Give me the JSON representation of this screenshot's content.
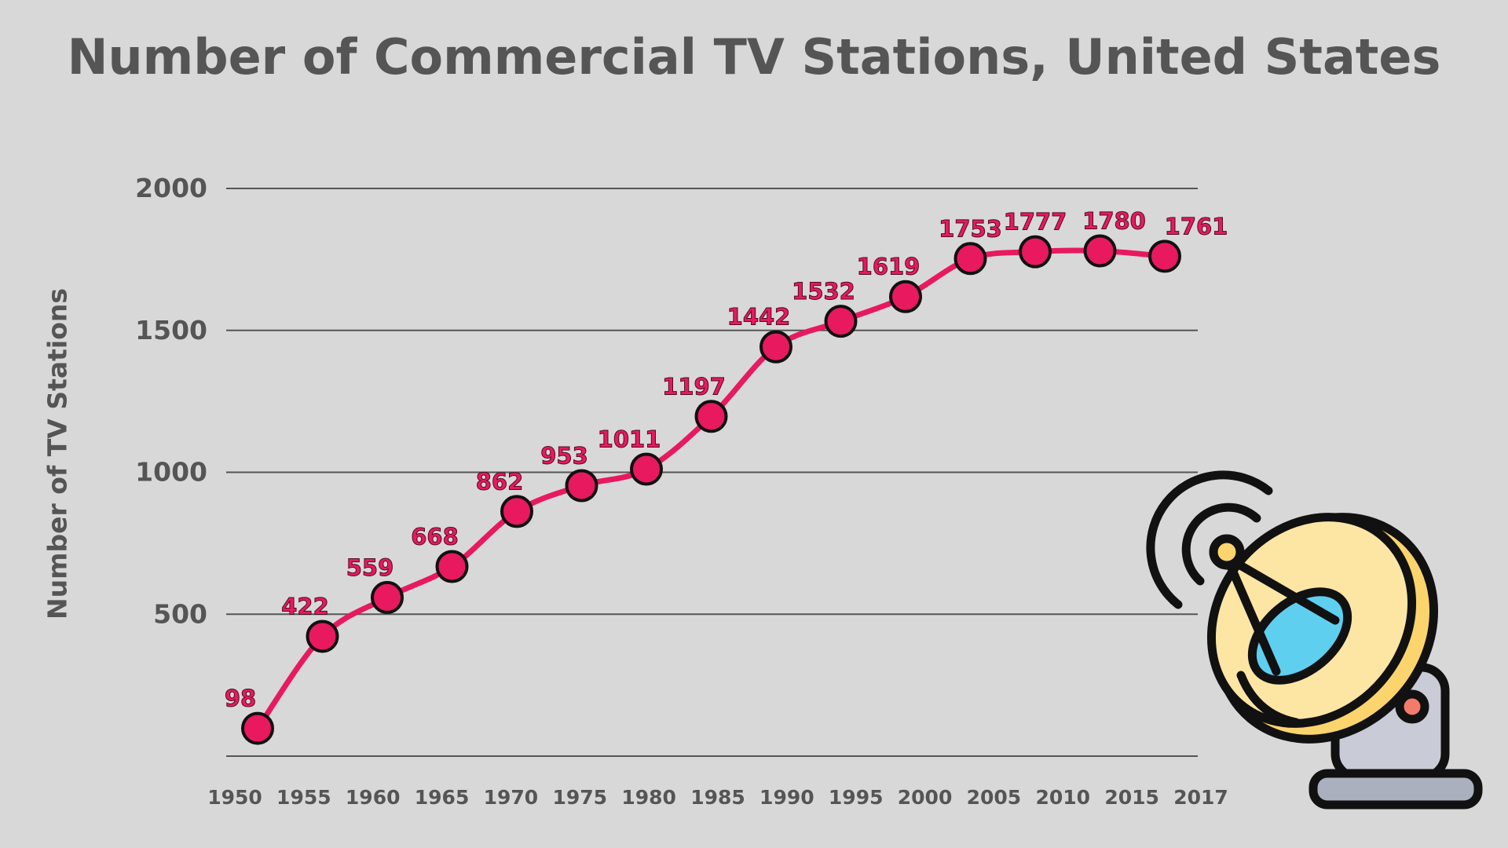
{
  "chart_data": {
    "type": "line",
    "title": "Number of Commercial TV Stations, United States",
    "xlabel": "",
    "ylabel": "Number of TV Stations",
    "x_tick_labels": [
      "1950",
      "1955",
      "1960",
      "1965",
      "1970",
      "1975",
      "1980",
      "1985",
      "1990",
      "1995",
      "2000",
      "2005",
      "2010",
      "2015",
      "2017"
    ],
    "y_ticks": [
      500,
      1000,
      1500,
      2000
    ],
    "ylim": [
      0,
      2000
    ],
    "grid": "horizontal",
    "values": [
      98,
      422,
      559,
      668,
      862,
      953,
      1011,
      1197,
      1442,
      1532,
      1619,
      1753,
      1777,
      1780,
      1761
    ],
    "data_labels": true,
    "line_color": "#e8195f",
    "marker_color": "#e8195f",
    "icon": "satellite-dish-icon"
  }
}
